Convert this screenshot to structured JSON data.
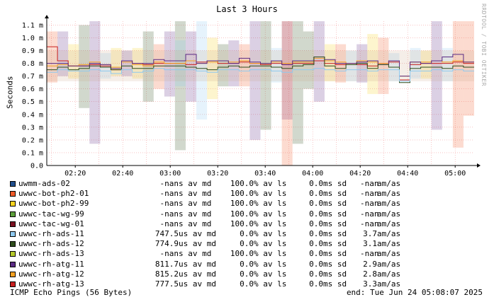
{
  "title": "Last 3 Hours",
  "watermark": "RRDTOOL / TOBI OETIKER",
  "ylabel": "Seconds",
  "footer": {
    "left": "ICMP Echo Pings (56 Bytes)",
    "right": "end: Tue Jun 24 05:08:07 2025"
  },
  "legend": [
    {
      "name": "uwmm-ads-02",
      "color": "#1f4e8c",
      "avg": "-nan",
      "avg_unit": "s av md",
      "loss": "100.0",
      "loss_unit": "% av ls",
      "sd": "0.0",
      "sd_unit": "ms sd",
      "am": "-nan",
      "am_unit": "am/as"
    },
    {
      "name": "uwwc-bot-ph2-01",
      "color": "#f05a28",
      "avg": "-nan",
      "avg_unit": "s av md",
      "loss": "100.0",
      "loss_unit": "% av ls",
      "sd": "0.0",
      "sd_unit": "ms sd",
      "am": "-nan",
      "am_unit": "am/as"
    },
    {
      "name": "uwwc-bot-ph2-99",
      "color": "#f7d21e",
      "avg": "-nan",
      "avg_unit": "s av md",
      "loss": "100.0",
      "loss_unit": "% av ls",
      "sd": "0.0",
      "sd_unit": "ms sd",
      "am": "-nan",
      "am_unit": "am/as"
    },
    {
      "name": "uwwc-tac-wg-99",
      "color": "#5b9e3a",
      "avg": "-nan",
      "avg_unit": "s av md",
      "loss": "100.0",
      "loss_unit": "% av ls",
      "sd": "0.0",
      "sd_unit": "ms sd",
      "am": "-nan",
      "am_unit": "am/as"
    },
    {
      "name": "uwwc-tac-wg-01",
      "color": "#7a1020",
      "avg": "-nan",
      "avg_unit": "s av md",
      "loss": "100.0",
      "loss_unit": "% av ls",
      "sd": "0.0",
      "sd_unit": "ms sd",
      "am": "-nan",
      "am_unit": "am/as"
    },
    {
      "name": "uwwc-rh-ads-11",
      "color": "#8ec9f0",
      "avg": "747.5",
      "avg_unit": "us av md",
      "loss": "0.0",
      "loss_unit": "% av ls",
      "sd": "0.0",
      "sd_unit": "ms sd",
      "am": "3.7",
      "am_unit": "am/as"
    },
    {
      "name": "uwwc-rh-ads-12",
      "color": "#2e4d1c",
      "avg": "774.9",
      "avg_unit": "us av md",
      "loss": "0.0",
      "loss_unit": "% av ls",
      "sd": "0.0",
      "sd_unit": "ms sd",
      "am": "3.1",
      "am_unit": "am/as"
    },
    {
      "name": "uwwc-rh-ads-13",
      "color": "#b5c92a",
      "avg": "-nan",
      "avg_unit": "s av md",
      "loss": "100.0",
      "loss_unit": "% av ls",
      "sd": "0.0",
      "sd_unit": "ms sd",
      "am": "-nan",
      "am_unit": "am/as"
    },
    {
      "name": "uwwc-rh-atg-11",
      "color": "#5a2a84",
      "avg": "811.7",
      "avg_unit": "us av md",
      "loss": "0.0",
      "loss_unit": "% av ls",
      "sd": "0.0",
      "sd_unit": "ms sd",
      "am": "2.9",
      "am_unit": "am/as"
    },
    {
      "name": "uwwc-rh-atg-12",
      "color": "#f5a020",
      "avg": "815.2",
      "avg_unit": "us av md",
      "loss": "0.0",
      "loss_unit": "% av ls",
      "sd": "0.0",
      "sd_unit": "ms sd",
      "am": "2.8",
      "am_unit": "am/as"
    },
    {
      "name": "uwwc-rh-atg-13",
      "color": "#c81e1e",
      "avg": "777.5",
      "avg_unit": "us av md",
      "loss": "0.0",
      "loss_unit": "% av ls",
      "sd": "0.0",
      "sd_unit": "ms sd",
      "am": "3.3",
      "am_unit": "am/as"
    }
  ],
  "chart_data": {
    "type": "line",
    "title": "Last 3 Hours",
    "ylabel": "Seconds",
    "ylim": [
      0,
      1.13
    ],
    "yticks": [
      0.0,
      0.1,
      0.2,
      0.3,
      0.4,
      0.5,
      0.6,
      0.7,
      0.8,
      0.9,
      1.0,
      1.1
    ],
    "ytick_labels": [
      "0.0",
      "0.1 m",
      "0.2 m",
      "0.3 m",
      "0.4 m",
      "0.5 m",
      "0.6 m",
      "0.7 m",
      "0.8 m",
      "0.9 m",
      "1.0 m",
      "1.1 m"
    ],
    "xlim": [
      "02:08",
      "05:08"
    ],
    "xticks": [
      "02:20",
      "02:40",
      "03:00",
      "03:20",
      "03:40",
      "04:00",
      "04:20",
      "04:40",
      "05:00"
    ],
    "grid": true,
    "series": [
      {
        "name": "uwwc-rh-atg-13",
        "color": "#c81e1e",
        "values": [
          0.93,
          0.82,
          0.78,
          0.78,
          0.79,
          0.78,
          0.75,
          0.82,
          0.8,
          0.79,
          0.8,
          0.8,
          0.8,
          0.79,
          0.81,
          0.82,
          0.8,
          0.8,
          0.81,
          0.8,
          0.79,
          0.8,
          0.79,
          0.8,
          0.8,
          0.82,
          0.8,
          0.79,
          0.8,
          0.79,
          0.78,
          0.8,
          0.81,
          0.67,
          0.79,
          0.8,
          0.8,
          0.8,
          0.81,
          0.8
        ]
      },
      {
        "name": "uwwc-rh-atg-12",
        "color": "#f5a020",
        "values": [
          0.78,
          0.79,
          0.78,
          0.79,
          0.81,
          0.79,
          0.77,
          0.81,
          0.79,
          0.78,
          0.81,
          0.8,
          0.8,
          0.82,
          0.8,
          0.81,
          0.82,
          0.81,
          0.82,
          0.8,
          0.8,
          0.81,
          0.8,
          0.81,
          0.81,
          0.84,
          0.82,
          0.81,
          0.8,
          0.82,
          0.81,
          0.8,
          0.82,
          0.7,
          0.81,
          0.81,
          0.82,
          0.81,
          0.82,
          0.81
        ]
      },
      {
        "name": "uwwc-rh-atg-11",
        "color": "#5a2a84",
        "values": [
          0.8,
          0.8,
          0.78,
          0.78,
          0.8,
          0.79,
          0.76,
          0.82,
          0.8,
          0.8,
          0.83,
          0.82,
          0.82,
          0.87,
          0.8,
          0.82,
          0.82,
          0.8,
          0.84,
          0.81,
          0.8,
          0.82,
          0.79,
          0.82,
          0.82,
          0.85,
          0.83,
          0.8,
          0.8,
          0.81,
          0.82,
          0.79,
          0.82,
          0.7,
          0.81,
          0.8,
          0.82,
          0.85,
          0.87,
          0.81
        ]
      },
      {
        "name": "uwwc-rh-ads-12",
        "color": "#2e4d1c",
        "values": [
          0.75,
          0.77,
          0.75,
          0.76,
          0.78,
          0.77,
          0.75,
          0.78,
          0.76,
          0.76,
          0.78,
          0.78,
          0.78,
          0.77,
          0.76,
          0.75,
          0.77,
          0.78,
          0.77,
          0.78,
          0.78,
          0.77,
          0.76,
          0.78,
          0.79,
          0.85,
          0.78,
          0.76,
          0.79,
          0.8,
          0.76,
          0.79,
          0.77,
          0.65,
          0.76,
          0.77,
          0.77,
          0.76,
          0.78,
          0.77
        ]
      },
      {
        "name": "uwwc-rh-ads-11",
        "color": "#8ec9f0",
        "values": [
          0.73,
          0.75,
          0.74,
          0.74,
          0.75,
          0.74,
          0.72,
          0.75,
          0.73,
          0.74,
          0.76,
          0.75,
          0.75,
          0.75,
          0.74,
          0.73,
          0.75,
          0.75,
          0.74,
          0.75,
          0.75,
          0.74,
          0.73,
          0.75,
          0.75,
          0.76,
          0.75,
          0.74,
          0.75,
          0.75,
          0.74,
          0.75,
          0.75,
          0.66,
          0.74,
          0.74,
          0.75,
          0.74,
          0.75,
          0.74
        ]
      }
    ],
    "bands": [
      {
        "color": "#5a2a84",
        "x": [
          1,
          4,
          7,
          11,
          13,
          17,
          19,
          22,
          25,
          29,
          36
        ],
        "lo": [
          0.7,
          0.17,
          0.7,
          0.54,
          0.5,
          0.62,
          0.2,
          0.36,
          0.5,
          0.65,
          0.28
        ],
        "hi": [
          1.05,
          1.13,
          0.9,
          1.05,
          1.05,
          0.98,
          1.13,
          1.13,
          1.13,
          0.95,
          1.13
        ]
      },
      {
        "color": "#2e4d1c",
        "x": [
          3,
          9,
          12,
          16,
          20,
          23,
          24
        ],
        "lo": [
          0.45,
          0.5,
          0.12,
          0.62,
          0.28,
          0.17,
          0.6
        ],
        "hi": [
          1.1,
          1.05,
          1.13,
          0.95,
          1.13,
          1.13,
          1.05
        ]
      },
      {
        "color": "#f05a28",
        "x": [
          0,
          10,
          18,
          22,
          27,
          31,
          38,
          39
        ],
        "lo": [
          0.65,
          0.6,
          0.62,
          0.0,
          0.65,
          0.56,
          0.14,
          0.39
        ],
        "hi": [
          1.05,
          0.95,
          0.95,
          1.13,
          0.95,
          1.0,
          1.13,
          1.13
        ]
      },
      {
        "color": "#f7d21e",
        "x": [
          2,
          6,
          8,
          15,
          26,
          30,
          35
        ],
        "lo": [
          0.68,
          0.7,
          0.68,
          0.52,
          0.66,
          0.56,
          0.68
        ],
        "hi": [
          0.95,
          0.92,
          0.92,
          1.0,
          0.95,
          1.03,
          0.9
        ]
      },
      {
        "color": "#8ec9f0",
        "x": [
          5,
          12,
          14,
          21,
          28,
          32,
          34,
          37
        ],
        "lo": [
          0.68,
          0.62,
          0.36,
          0.65,
          0.66,
          0.66,
          0.68,
          0.66
        ],
        "hi": [
          0.88,
          0.98,
          1.13,
          0.92,
          0.9,
          0.88,
          0.92,
          0.92
        ]
      }
    ]
  }
}
